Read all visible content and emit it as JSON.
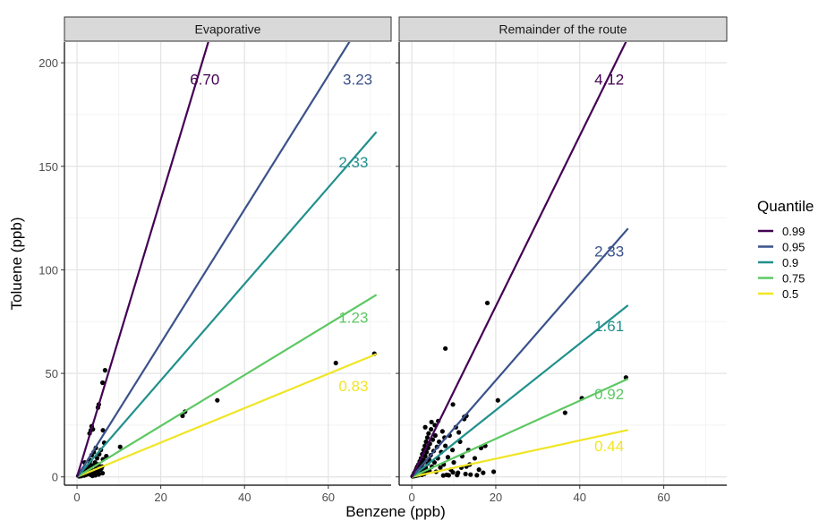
{
  "chart_data": {
    "type": "scatter",
    "xlabel": "Benzene (ppb)",
    "ylabel": "Toluene (ppb)",
    "xlim": [
      -3,
      75
    ],
    "ylim": [
      -4,
      210
    ],
    "x_ticks": [
      0,
      20,
      40,
      60
    ],
    "y_ticks": [
      0,
      50,
      100,
      150,
      200
    ],
    "grid": true,
    "legend": {
      "title": "Quantile",
      "position": "right",
      "entries": [
        {
          "label": "0.99",
          "color": "#440154"
        },
        {
          "label": "0.95",
          "color": "#3B528B"
        },
        {
          "label": "0.9",
          "color": "#21908C"
        },
        {
          "label": "0.75",
          "color": "#5DC863"
        },
        {
          "label": "0.5",
          "color": "#F0E524"
        }
      ]
    },
    "panels": [
      {
        "title": "Evaporative",
        "fits": [
          {
            "quantile": "0.99",
            "slope": 6.7,
            "label": "6.70",
            "x_end": 71.5
          },
          {
            "quantile": "0.95",
            "slope": 3.23,
            "label": "3.23",
            "x_end": 71.5
          },
          {
            "quantile": "0.9",
            "slope": 2.33,
            "label": "2.33",
            "x_end": 71.5
          },
          {
            "quantile": "0.75",
            "slope": 1.23,
            "label": "1.23",
            "x_end": 71.5
          },
          {
            "quantile": "0.5",
            "slope": 0.83,
            "label": "0.83",
            "x_end": 71.5
          }
        ],
        "labels_at": [
          {
            "label": "6.70",
            "x": 30.5,
            "y": 192
          },
          {
            "label": "3.23",
            "x": 67,
            "y": 192
          },
          {
            "label": "2.33",
            "x": 66,
            "y": 152
          },
          {
            "label": "1.23",
            "x": 66,
            "y": 77
          },
          {
            "label": "0.83",
            "x": 66,
            "y": 44
          }
        ],
        "points": [
          [
            0.3,
            0.5
          ],
          [
            0.5,
            0.3
          ],
          [
            0.6,
            1.0
          ],
          [
            0.8,
            0.6
          ],
          [
            0.9,
            1.5
          ],
          [
            1.0,
            0.4
          ],
          [
            1.1,
            2.0
          ],
          [
            1.2,
            1.0
          ],
          [
            1.3,
            0.8
          ],
          [
            1.4,
            2.5
          ],
          [
            1.5,
            1.2
          ],
          [
            1.6,
            3.0
          ],
          [
            1.7,
            0.7
          ],
          [
            1.8,
            2.0
          ],
          [
            1.9,
            1.5
          ],
          [
            2.0,
            3.5
          ],
          [
            2.1,
            1.0
          ],
          [
            2.2,
            4.0
          ],
          [
            2.3,
            2.0
          ],
          [
            2.4,
            1.3
          ],
          [
            2.5,
            5.0
          ],
          [
            2.6,
            2.8
          ],
          [
            2.8,
            1.5
          ],
          [
            3.0,
            6.5
          ],
          [
            3.0,
            3.5
          ],
          [
            3.1,
            2.0
          ],
          [
            3.2,
            8.0
          ],
          [
            3.3,
            1.0
          ],
          [
            3.4,
            4.5
          ],
          [
            3.5,
            10.5
          ],
          [
            3.6,
            2.5
          ],
          [
            3.8,
            5.5
          ],
          [
            4.0,
            12.0
          ],
          [
            4.1,
            3.0
          ],
          [
            4.2,
            1.5
          ],
          [
            4.3,
            7.0
          ],
          [
            4.5,
            14.0
          ],
          [
            4.6,
            4.0
          ],
          [
            4.8,
            9.0
          ],
          [
            5.0,
            2.5
          ],
          [
            5.1,
            6.0
          ],
          [
            5.3,
            11.0
          ],
          [
            5.5,
            3.5
          ],
          [
            5.7,
            13.0
          ],
          [
            6.0,
            5.0
          ],
          [
            6.2,
            8.5
          ],
          [
            6.5,
            16.5
          ],
          [
            7.0,
            10.0
          ],
          [
            5.8,
            4.0
          ],
          [
            4.4,
            0.8
          ],
          [
            3.7,
            0.5
          ],
          [
            5.2,
            1.2
          ],
          [
            6.1,
            1.8
          ],
          [
            1.8,
            7.0
          ],
          [
            3.0,
            21.0
          ],
          [
            3.5,
            24.5
          ],
          [
            3.8,
            23.0
          ],
          [
            3.3,
            22.5
          ],
          [
            5.0,
            33.5
          ],
          [
            5.2,
            35.0
          ],
          [
            6.1,
            45.5
          ],
          [
            6.7,
            51.5
          ],
          [
            6.2,
            22.5
          ],
          [
            10.3,
            14.5
          ],
          [
            25.2,
            29.5
          ],
          [
            25.8,
            31.5
          ],
          [
            33.5,
            37.0
          ],
          [
            61.8,
            55.0
          ],
          [
            71.0,
            59.5
          ]
        ]
      },
      {
        "title": "Remainder of the route",
        "fits": [
          {
            "quantile": "0.99",
            "slope": 4.12,
            "label": "4.12",
            "x_end": 51.5
          },
          {
            "quantile": "0.95",
            "slope": 2.33,
            "label": "2.33",
            "x_end": 51.5
          },
          {
            "quantile": "0.9",
            "slope": 1.61,
            "label": "1.61",
            "x_end": 51.5
          },
          {
            "quantile": "0.75",
            "slope": 0.92,
            "label": "0.92",
            "x_end": 51.5
          },
          {
            "quantile": "0.5",
            "slope": 0.44,
            "label": "0.44",
            "x_end": 51.5
          }
        ],
        "labels_at": [
          {
            "label": "4.12",
            "x": 47,
            "y": 192
          },
          {
            "label": "2.33",
            "x": 47,
            "y": 109
          },
          {
            "label": "1.61",
            "x": 47,
            "y": 73
          },
          {
            "label": "0.92",
            "x": 47,
            "y": 40
          },
          {
            "label": "0.44",
            "x": 47,
            "y": 15
          }
        ],
        "points": [
          [
            0.2,
            0.3
          ],
          [
            0.4,
            0.8
          ],
          [
            0.5,
            1.5
          ],
          [
            0.6,
            0.4
          ],
          [
            0.7,
            2.2
          ],
          [
            0.8,
            1.0
          ],
          [
            0.9,
            3.0
          ],
          [
            1.0,
            0.6
          ],
          [
            1.1,
            4.0
          ],
          [
            1.2,
            1.8
          ],
          [
            1.3,
            5.0
          ],
          [
            1.4,
            2.5
          ],
          [
            1.5,
            0.8
          ],
          [
            1.6,
            6.0
          ],
          [
            1.7,
            3.2
          ],
          [
            1.8,
            1.2
          ],
          [
            1.9,
            7.5
          ],
          [
            2.0,
            4.0
          ],
          [
            2.1,
            2.0
          ],
          [
            2.2,
            9.0
          ],
          [
            2.3,
            5.5
          ],
          [
            2.4,
            1.0
          ],
          [
            2.5,
            11.0
          ],
          [
            2.6,
            6.5
          ],
          [
            2.7,
            3.0
          ],
          [
            2.8,
            13.0
          ],
          [
            2.9,
            8.0
          ],
          [
            3.0,
            1.5
          ],
          [
            3.1,
            15.0
          ],
          [
            3.2,
            10.0
          ],
          [
            3.3,
            4.5
          ],
          [
            3.4,
            17.0
          ],
          [
            3.5,
            12.0
          ],
          [
            3.6,
            2.2
          ],
          [
            3.7,
            19.0
          ],
          [
            3.8,
            6.5
          ],
          [
            3.9,
            14.0
          ],
          [
            4.0,
            21.0
          ],
          [
            4.1,
            8.5
          ],
          [
            4.2,
            3.0
          ],
          [
            4.3,
            16.0
          ],
          [
            4.5,
            10.5
          ],
          [
            4.6,
            23.0
          ],
          [
            4.8,
            5.0
          ],
          [
            5.0,
            18.0
          ],
          [
            5.2,
            12.5
          ],
          [
            5.4,
            7.0
          ],
          [
            5.6,
            20.0
          ],
          [
            5.8,
            2.5
          ],
          [
            6.0,
            14.5
          ],
          [
            6.2,
            9.0
          ],
          [
            6.5,
            17.0
          ],
          [
            6.8,
            4.5
          ],
          [
            7.0,
            12.0
          ],
          [
            7.3,
            22.0
          ],
          [
            7.6,
            6.0
          ],
          [
            8.0,
            15.0
          ],
          [
            8.3,
            1.0
          ],
          [
            8.6,
            9.5
          ],
          [
            9.0,
            20.0
          ],
          [
            9.3,
            3.5
          ],
          [
            9.7,
            13.0
          ],
          [
            10.0,
            7.0
          ],
          [
            10.5,
            24.0
          ],
          [
            11.0,
            2.0
          ],
          [
            11.5,
            17.0
          ],
          [
            12.0,
            10.0
          ],
          [
            12.5,
            29.0
          ],
          [
            13.0,
            5.0
          ],
          [
            13.5,
            13.0
          ],
          [
            7.5,
            0.7
          ],
          [
            8.8,
            0.8
          ],
          [
            9.8,
            2.2
          ],
          [
            10.8,
            0.9
          ],
          [
            11.8,
            4.5
          ],
          [
            12.8,
            1.4
          ],
          [
            14.0,
            1.1
          ],
          [
            15.0,
            9.0
          ],
          [
            16.0,
            3.5
          ],
          [
            17.0,
            2.0
          ],
          [
            8.0,
            62.0
          ],
          [
            9.8,
            35.0
          ],
          [
            12.5,
            28.0
          ],
          [
            13.0,
            29.5
          ],
          [
            16.5,
            14.0
          ],
          [
            18.0,
            84.0
          ],
          [
            20.5,
            37.0
          ],
          [
            19.5,
            2.5
          ],
          [
            15.5,
            0.8
          ],
          [
            36.5,
            31.0
          ],
          [
            40.5,
            38.0
          ],
          [
            51.0,
            48.0
          ],
          [
            6.3,
            27.0
          ],
          [
            5.5,
            25.0
          ],
          [
            4.7,
            26.5
          ],
          [
            3.2,
            24.0
          ],
          [
            7.8,
            19.0
          ],
          [
            11.2,
            21.5
          ],
          [
            13.8,
            6.0
          ],
          [
            17.5,
            15.0
          ]
        ]
      }
    ]
  }
}
